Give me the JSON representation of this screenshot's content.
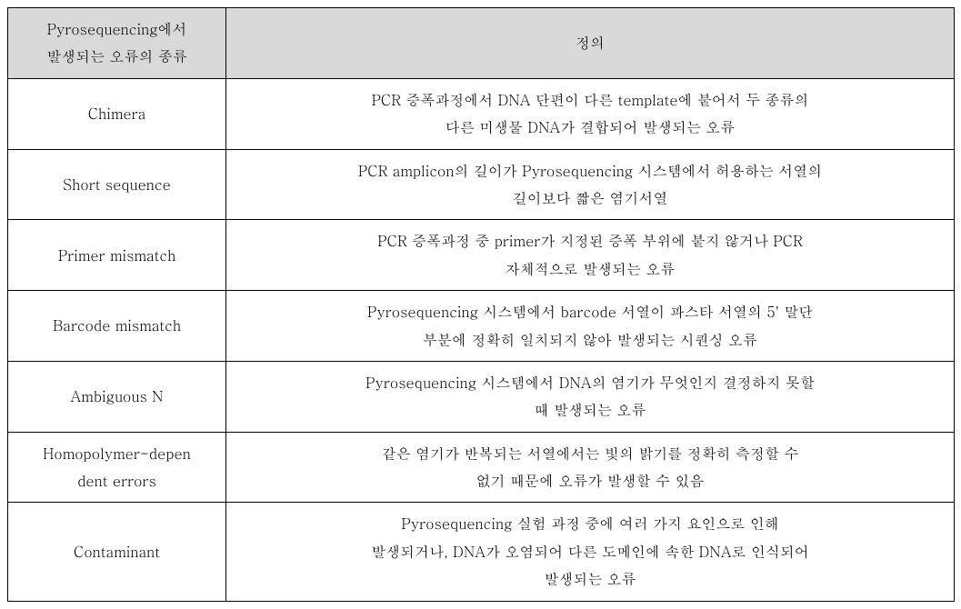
{
  "table": {
    "header": {
      "col1_line1": "Pyrosequencing에서",
      "col1_line2": "발생되는 오류의 종류",
      "col2": "정의"
    },
    "rows": [
      {
        "type": "Chimera",
        "def_line1": "PCR 증폭과정에서 DNA 단편이 다른 template에 붙어서 두 종류의",
        "def_line2": "다른 미생물 DNA가 결합되어 발생되는 오류"
      },
      {
        "type": "Short sequence",
        "def_line1": "PCR amplicon의 길이가 Pyrosequencing 시스템에서 허용하는 서열의",
        "def_line2": "길이보다 짧은 염기서열"
      },
      {
        "type": "Primer mismatch",
        "def_line1": "PCR 증폭과정 중 primer가 지정된 증폭 부위에 붙지 않거나 PCR",
        "def_line2": "자체적으로 발생되는 오류"
      },
      {
        "type": "Barcode mismatch",
        "def_line1": "Pyrosequencing 시스템에서 barcode 서열이 파스타 서열의 5' 말단",
        "def_line2": "부분에 정확히 일치되지 않아 발생되는 시퀀싱 오류"
      },
      {
        "type": "Ambiguous N",
        "def_line1": "Pyrosequencing 시스템에서 DNA의 염기가 무엇인지 결정하지 못할",
        "def_line2": "때 발생되는 오류"
      },
      {
        "type_line1": "Homopolymer-depen",
        "type_line2": "dent errors",
        "def_line1": "같은 염기가 반복되는 서열에서는 빛의 밝기를 정확히 측정할 수",
        "def_line2": "없기 때문에 오류가 발생할 수 있음"
      },
      {
        "type": "Contaminant",
        "def_line1": "Pyrosequencing 실험 과정 중에 여러 가지 요인으로 인해",
        "def_line2": "발생되거나, DNA가 오염되어 다른 도메인에 속한 DNA로 인식되어",
        "def_line3": "발생되는 오류"
      }
    ],
    "colors": {
      "header_bg": "#d9d9d9",
      "border": "#000000",
      "text": "#000000",
      "background": "#ffffff"
    },
    "typography": {
      "font_family": "Batang, BatangChe, Times New Roman, serif",
      "font_size_pt": 12
    }
  }
}
